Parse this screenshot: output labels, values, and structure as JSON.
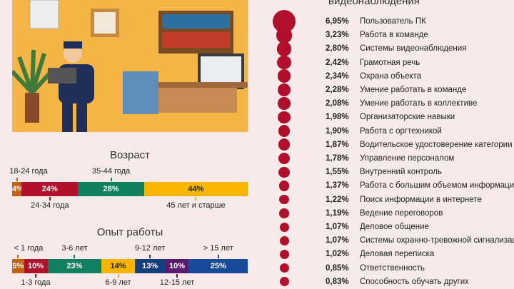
{
  "skills_heading": "видеонаблюдения",
  "skills": [
    {
      "pct": "6,95%",
      "value": 6.95,
      "label": "Пользователь ПК"
    },
    {
      "pct": "3,23%",
      "value": 3.23,
      "label": "Работа в команде"
    },
    {
      "pct": "2,80%",
      "value": 2.8,
      "label": "Системы видеонаблюдения"
    },
    {
      "pct": "2,42%",
      "value": 2.42,
      "label": "Грамотная речь"
    },
    {
      "pct": "2,34%",
      "value": 2.34,
      "label": "Охрана объекта"
    },
    {
      "pct": "2,28%",
      "value": 2.28,
      "label": "Умение работать в команде"
    },
    {
      "pct": "2,08%",
      "value": 2.08,
      "label": "Умение работать в коллективе"
    },
    {
      "pct": "1,98%",
      "value": 1.98,
      "label": "Организаторские навыки"
    },
    {
      "pct": "1,90%",
      "value": 1.9,
      "label": "Работа с оргтехникой"
    },
    {
      "pct": "1,87%",
      "value": 1.87,
      "label": "Водительское удостоверение категории B"
    },
    {
      "pct": "1,78%",
      "value": 1.78,
      "label": "Управление персоналом"
    },
    {
      "pct": "1,55%",
      "value": 1.55,
      "label": "Внутренний контроль"
    },
    {
      "pct": "1,37%",
      "value": 1.37,
      "label": "Работа с большим объемом информации"
    },
    {
      "pct": "1,22%",
      "value": 1.22,
      "label": "Поиск информации в интернете"
    },
    {
      "pct": "1,19%",
      "value": 1.19,
      "label": "Ведение переговоров"
    },
    {
      "pct": "1,07%",
      "value": 1.07,
      "label": "Деловое общение"
    },
    {
      "pct": "1,07%",
      "value": 1.07,
      "label": "Системы охранно-тревожной сигнализации"
    },
    {
      "pct": "1,02%",
      "value": 1.02,
      "label": "Деловая переписка"
    },
    {
      "pct": "0,85%",
      "value": 0.85,
      "label": "Ответственность"
    },
    {
      "pct": "0,83%",
      "value": 0.83,
      "label": "Способность обучать других"
    }
  ],
  "chart_data": [
    {
      "type": "bar",
      "title": "Возраст",
      "stacked": true,
      "categories": [
        "18-24 года",
        "24-34 года",
        "35-44 года",
        "45 лет и старше"
      ],
      "values": [
        4,
        24,
        28,
        44
      ],
      "labels": [
        "4%",
        "24%",
        "28%",
        "44%"
      ],
      "colors": [
        "#c5620f",
        "#b0102c",
        "#0f8060",
        "#f7b500"
      ],
      "label_pos": [
        "above",
        "below",
        "above",
        "below"
      ]
    },
    {
      "type": "bar",
      "title": "Опыт работы",
      "stacked": true,
      "categories": [
        "< 1 года",
        "1-3 года",
        "3-6 лет",
        "6-9 лет",
        "9-12 лет",
        "12-15 лет",
        "> 15 лет"
      ],
      "values": [
        5,
        10,
        23,
        14,
        13,
        10,
        25
      ],
      "labels": [
        "5%",
        "10%",
        "23%",
        "14%",
        "13%",
        "10%",
        "25%"
      ],
      "colors": [
        "#c5620f",
        "#b0102c",
        "#0f8060",
        "#f7b500",
        "#153f80",
        "#5c1a6e",
        "#174a9a"
      ],
      "label_pos": [
        "above",
        "below",
        "above",
        "below",
        "above",
        "below",
        "above"
      ]
    }
  ]
}
